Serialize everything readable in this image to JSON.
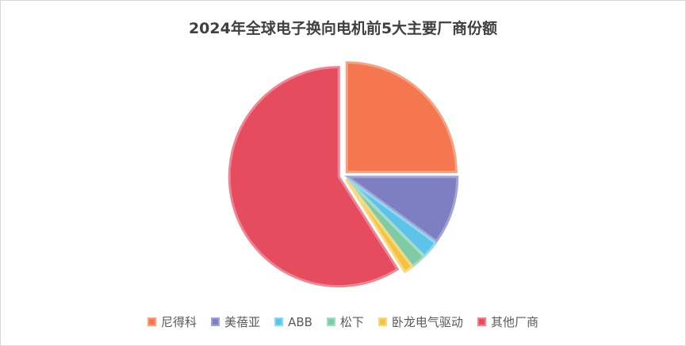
{
  "chart_data": {
    "type": "pie",
    "title": "2024年全球电子换向电机前5大主要厂商份额",
    "legend_position": "bottom",
    "slices": [
      {
        "label": "尼得科",
        "value": 25.0,
        "color": "#F4774F",
        "stroke": "#F4A385"
      },
      {
        "label": "美蓓亚",
        "value": 10.0,
        "color": "#7E7FC2",
        "stroke": "#A3A4D6"
      },
      {
        "label": "ABB",
        "value": 2.5,
        "color": "#5EC3E8",
        "stroke": "#92D7F0"
      },
      {
        "label": "松下",
        "value": 2.2,
        "color": "#7ECBA5",
        "stroke": "#A8DCC2"
      },
      {
        "label": "卧龙电气驱动",
        "value": 1.3,
        "color": "#F3C442",
        "stroke": "#F7D97F"
      },
      {
        "label": "其他厂商",
        "value": 59.0,
        "color": "#E54C5E",
        "stroke": "#EE8592"
      }
    ]
  }
}
